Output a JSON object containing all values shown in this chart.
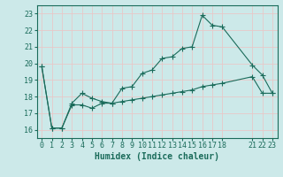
{
  "xlabel": "Humidex (Indice chaleur)",
  "ylabel": "",
  "bg_color": "#cce9e9",
  "grid_color": "#e8c8c8",
  "line_color": "#1a6b5a",
  "xlim": [
    -0.5,
    23.5
  ],
  "ylim": [
    15.5,
    23.5
  ],
  "xticks": [
    0,
    1,
    2,
    3,
    4,
    5,
    6,
    7,
    8,
    9,
    10,
    11,
    12,
    13,
    14,
    15,
    16,
    17,
    18,
    21,
    22,
    23
  ],
  "yticks": [
    16,
    17,
    18,
    19,
    20,
    21,
    22,
    23
  ],
  "curve1_x": [
    0,
    1,
    2,
    3,
    4,
    5,
    6,
    7,
    8,
    9,
    10,
    11,
    12,
    13,
    14,
    15,
    16,
    17,
    18,
    21,
    22,
    23
  ],
  "curve1_y": [
    19.8,
    16.1,
    16.1,
    17.6,
    18.2,
    17.9,
    17.7,
    17.6,
    18.5,
    18.6,
    19.4,
    19.6,
    20.3,
    20.4,
    20.9,
    21.0,
    22.9,
    22.3,
    22.2,
    19.9,
    19.3,
    18.2
  ],
  "curve2_x": [
    0,
    1,
    2,
    3,
    4,
    5,
    6,
    7,
    8,
    9,
    10,
    11,
    12,
    13,
    14,
    15,
    16,
    17,
    18,
    21,
    22,
    23
  ],
  "curve2_y": [
    19.8,
    16.1,
    16.1,
    17.5,
    17.5,
    17.3,
    17.6,
    17.6,
    17.7,
    17.8,
    17.9,
    18.0,
    18.1,
    18.2,
    18.3,
    18.4,
    18.6,
    18.7,
    18.8,
    19.2,
    18.2,
    18.2
  ],
  "marker_style": "+",
  "marker_size": 4,
  "linewidth": 0.8,
  "font_size_ticks": 6,
  "font_size_xlabel": 7
}
